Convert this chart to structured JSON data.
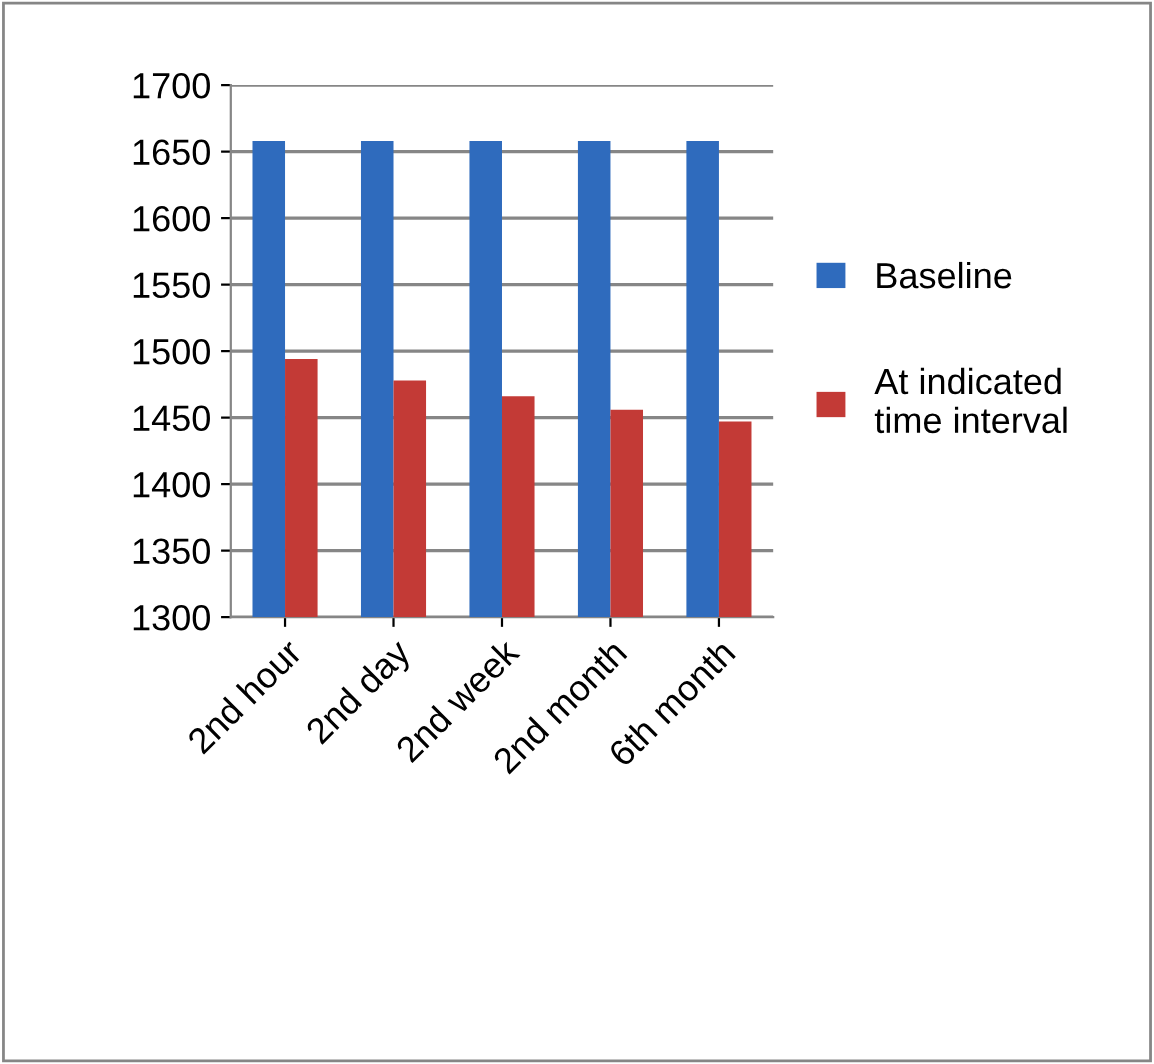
{
  "chart_data": {
    "type": "bar",
    "categories": [
      "2nd hour",
      "2nd day",
      "2nd week",
      "2nd month",
      "6th month"
    ],
    "series": [
      {
        "name": "Baseline",
        "color": "#2f6bbd",
        "values": [
          1658,
          1658,
          1658,
          1658,
          1658
        ]
      },
      {
        "name": "At indicated time interval",
        "color": "#c33a36",
        "values": [
          1494,
          1478,
          1466,
          1456,
          1447
        ]
      }
    ],
    "ylim": [
      1300,
      1700
    ],
    "yticks": [
      1300,
      1350,
      1400,
      1450,
      1500,
      1550,
      1600,
      1650,
      1700
    ],
    "grid": "y",
    "legend": "right"
  }
}
